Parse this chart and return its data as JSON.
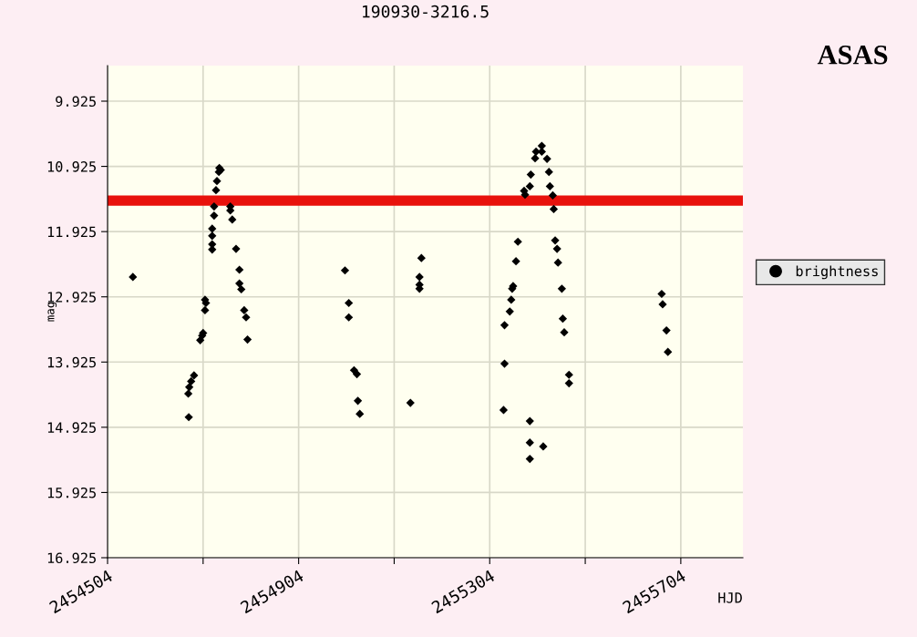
{
  "chart_data": {
    "type": "scatter",
    "title": "190930-3216.5",
    "xlabel": "HJD",
    "ylabel": "mag",
    "annotations": [
      "ASAS"
    ],
    "series": [
      {
        "name": "brightness",
        "color": "#000000",
        "x": [
          2454557,
          2454685,
          2454679,
          2454675,
          2454673,
          2454674,
          2454698,
          2454702,
          2454704,
          2454708,
          2454710,
          2454708,
          2454723,
          2454723,
          2454723,
          2454723,
          2454727,
          2454727,
          2454731,
          2454733,
          2454737,
          2454741,
          2454738,
          2454761,
          2454765,
          2454761,
          2454773,
          2454780,
          2454780,
          2454784,
          2454790,
          2454794,
          2454797,
          2455001,
          2455009,
          2455009,
          2455020,
          2455026,
          2455028,
          2455032,
          2455161,
          2455157,
          2455157,
          2455157,
          2455138,
          2455413,
          2455399,
          2455390,
          2455388,
          2455378,
          2455376,
          2455424,
          2455428,
          2455430,
          2455436,
          2455438,
          2455401,
          2455413,
          2455363,
          2455359,
          2455353,
          2455351,
          2455349,
          2455346,
          2455335,
          2455335,
          2455333,
          2455388,
          2455388,
          2455416,
          2455388,
          2455441,
          2455445,
          2455447,
          2455455,
          2455457,
          2455460,
          2455470,
          2455470,
          2455664,
          2455666,
          2455674,
          2455677
        ],
        "values": [
          12.62,
          14.13,
          14.22,
          14.31,
          14.41,
          14.77,
          13.59,
          13.52,
          13.48,
          12.97,
          13.02,
          13.13,
          11.88,
          11.99,
          12.12,
          12.2,
          11.68,
          11.54,
          11.29,
          11.15,
          11.01,
          10.98,
          10.95,
          11.6,
          11.74,
          11.54,
          12.19,
          12.51,
          12.72,
          12.81,
          13.13,
          13.24,
          13.58,
          12.52,
          13.02,
          13.24,
          14.05,
          14.11,
          14.52,
          14.72,
          12.33,
          12.62,
          12.74,
          12.8,
          14.55,
          10.61,
          10.8,
          11.05,
          11.23,
          11.36,
          11.3,
          10.81,
          11.01,
          11.23,
          11.37,
          11.58,
          10.7,
          10.7,
          12.08,
          12.38,
          12.76,
          12.8,
          12.97,
          13.15,
          13.36,
          13.95,
          14.66,
          14.83,
          15.16,
          15.22,
          15.41,
          12.06,
          12.19,
          12.4,
          12.8,
          13.26,
          13.47,
          14.12,
          14.25,
          12.88,
          13.04,
          13.44,
          13.77
        ]
      }
    ],
    "marker": "diamond",
    "grid": true,
    "legend": "right",
    "xlim": [
      2454504,
      2455834
    ],
    "ylim": [
      16.925,
      9.38
    ],
    "xticks": [
      2454504,
      {
        "value": 2454704,
        "label": null
      },
      2454904,
      {
        "value": 2455104,
        "label": null
      },
      2455304,
      {
        "value": 2455504,
        "label": null
      },
      2455704
    ],
    "yticks": [
      9.925,
      10.925,
      11.925,
      12.925,
      13.925,
      14.925,
      15.925,
      16.925
    ],
    "ref_lines": [
      {
        "axis": "y",
        "value": 11.45,
        "color": "#e8120c"
      }
    ]
  }
}
